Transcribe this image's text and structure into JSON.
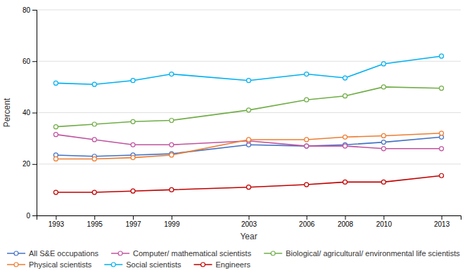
{
  "chart_data": {
    "type": "line",
    "xlabel": "Year",
    "ylabel": "Percent",
    "x": [
      1993,
      1995,
      1997,
      1999,
      2003,
      2006,
      2008,
      2010,
      2013
    ],
    "series": [
      {
        "name": "All S&E occupations",
        "color": "#4472C4",
        "values": [
          23.5,
          23.0,
          23.5,
          24.0,
          27.5,
          27.0,
          27.5,
          28.5,
          30.5
        ]
      },
      {
        "name": "Computer/ mathematical scientists",
        "color": "#C0539F",
        "values": [
          31.5,
          29.5,
          27.5,
          27.5,
          29.0,
          27.0,
          27.0,
          26.0,
          26.0
        ]
      },
      {
        "name": "Biological/ agricultural/ environmental life scientists",
        "color": "#70AD47",
        "values": [
          34.5,
          35.5,
          36.5,
          37.0,
          41.0,
          45.0,
          46.5,
          50.0,
          49.5
        ]
      },
      {
        "name": "Physical scientists",
        "color": "#ED7D31",
        "values": [
          22.0,
          22.0,
          22.5,
          23.5,
          29.5,
          29.5,
          30.5,
          31.0,
          32.0
        ]
      },
      {
        "name": "Social scientists",
        "color": "#00B0F0",
        "values": [
          51.5,
          51.0,
          52.5,
          55.0,
          52.5,
          55.0,
          53.5,
          59.0,
          62.0
        ]
      },
      {
        "name": "Engineers",
        "color": "#C00000",
        "values": [
          9.0,
          9.0,
          9.5,
          10.0,
          11.0,
          12.0,
          13.0,
          13.0,
          15.5
        ]
      }
    ],
    "xlim": [
      1992,
      2014
    ],
    "xticks": [
      1993,
      1995,
      1997,
      1999,
      2003,
      2006,
      2008,
      2010,
      2013
    ],
    "ylim": [
      0,
      80
    ],
    "yticks": [
      0,
      20,
      40,
      60,
      80
    ],
    "grid": true,
    "marker": "circle",
    "legend": "bottom"
  }
}
